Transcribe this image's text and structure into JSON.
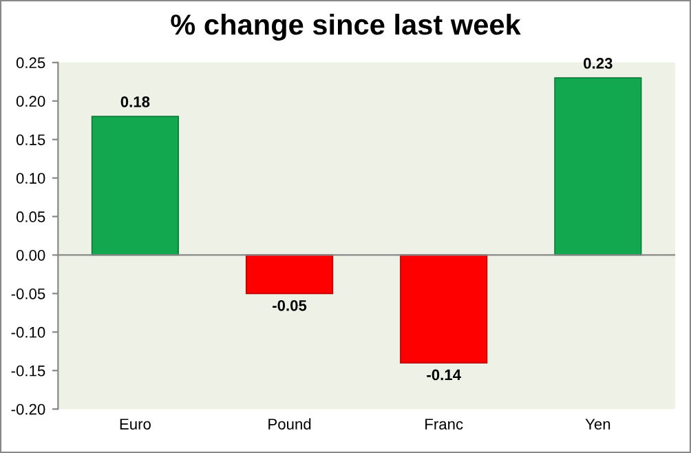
{
  "chart_data": {
    "type": "bar",
    "title": "% change since last week",
    "categories": [
      "Euro",
      "Pound",
      "Franc",
      "Yen"
    ],
    "values": [
      0.18,
      -0.05,
      -0.14,
      0.23
    ],
    "colors": [
      "#12a84f",
      "#ff0000",
      "#ff0000",
      "#12a84f"
    ],
    "ylim": [
      -0.2,
      0.25
    ],
    "yticks": [
      {
        "value": -0.2,
        "label": "-0.20"
      },
      {
        "value": -0.15,
        "label": "-0.15"
      },
      {
        "value": -0.1,
        "label": "-0.10"
      },
      {
        "value": -0.05,
        "label": "-0.05"
      },
      {
        "value": 0,
        "label": "0.00"
      },
      {
        "value": 0.05,
        "label": "0.05"
      },
      {
        "value": 0.1,
        "label": "0.10"
      },
      {
        "value": 0.15,
        "label": "0.15"
      },
      {
        "value": 0.2,
        "label": "0.20"
      },
      {
        "value": 0.25,
        "label": "0.25"
      }
    ],
    "data_labels": true,
    "legend": false
  }
}
